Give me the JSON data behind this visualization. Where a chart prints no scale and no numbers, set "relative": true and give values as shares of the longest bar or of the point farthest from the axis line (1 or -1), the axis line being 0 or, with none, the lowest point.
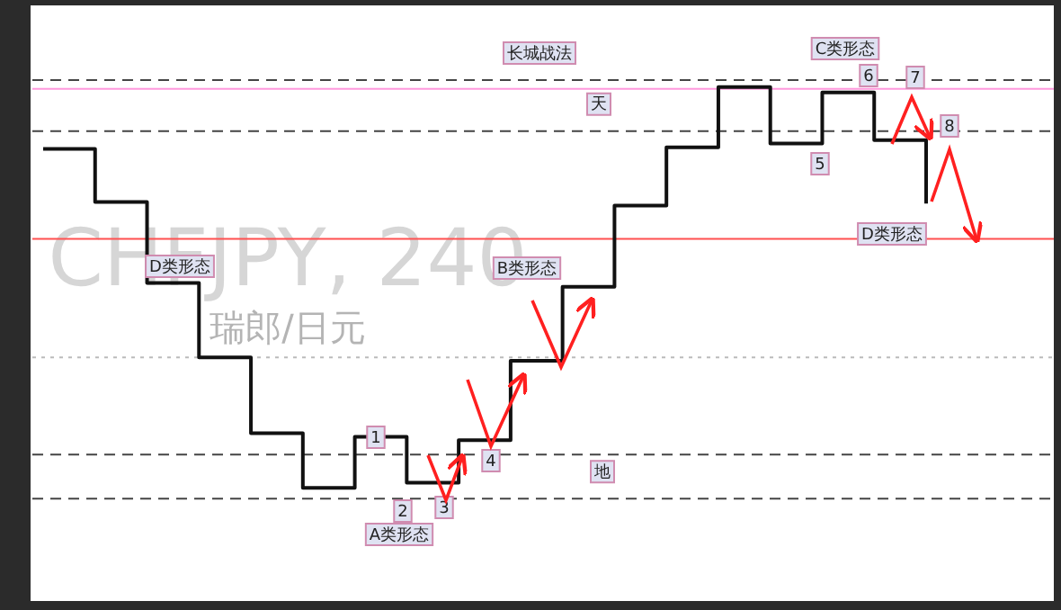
{
  "chart_data": {
    "type": "step",
    "relative": true,
    "marker": "none",
    "line_style": "solid",
    "color": "#111111",
    "categories": [
      null,
      null,
      null,
      null,
      null,
      null,
      null,
      null,
      null,
      null,
      null,
      null,
      null,
      null,
      null,
      null,
      null,
      null
    ],
    "values": [
      0.85,
      0.721,
      0.524,
      0.343,
      0.159,
      0.026,
      0.15,
      0.039,
      0.142,
      0.335,
      0.515,
      0.712,
      0.854,
      1,
      0.863,
      0.987,
      0.871,
      0.717
    ],
    "ref_lines": [
      {
        "axis": "y",
        "value": 1.017,
        "label": "长城战法",
        "color": "#444444",
        "line_style": "dashed"
      },
      {
        "axis": "y",
        "value": 0.996,
        "color": "#ff99dd",
        "line_style": "solid"
      },
      {
        "axis": "y",
        "value": 0.893,
        "label": "天",
        "color": "#444444",
        "line_style": "dashed"
      },
      {
        "axis": "y",
        "value": 0.631,
        "color": "#ff5050",
        "line_style": "solid"
      },
      {
        "axis": "y",
        "value": 0.343,
        "color": "#bbbbbb",
        "line_style": "dotted"
      },
      {
        "axis": "y",
        "value": 0.107,
        "color": "#444444",
        "line_style": "dashed"
      },
      {
        "axis": "y",
        "value": 0,
        "label": "地",
        "color": "#444444",
        "line_style": "dashed"
      }
    ],
    "annotations": [
      "D类形态",
      "1",
      "2",
      "3",
      "4",
      "A类形态",
      "B类形态",
      "5",
      "C类形态",
      "6",
      "7",
      "8",
      "D类形态",
      "CHFJPY, 240",
      "瑞郎/日元"
    ]
  }
}
